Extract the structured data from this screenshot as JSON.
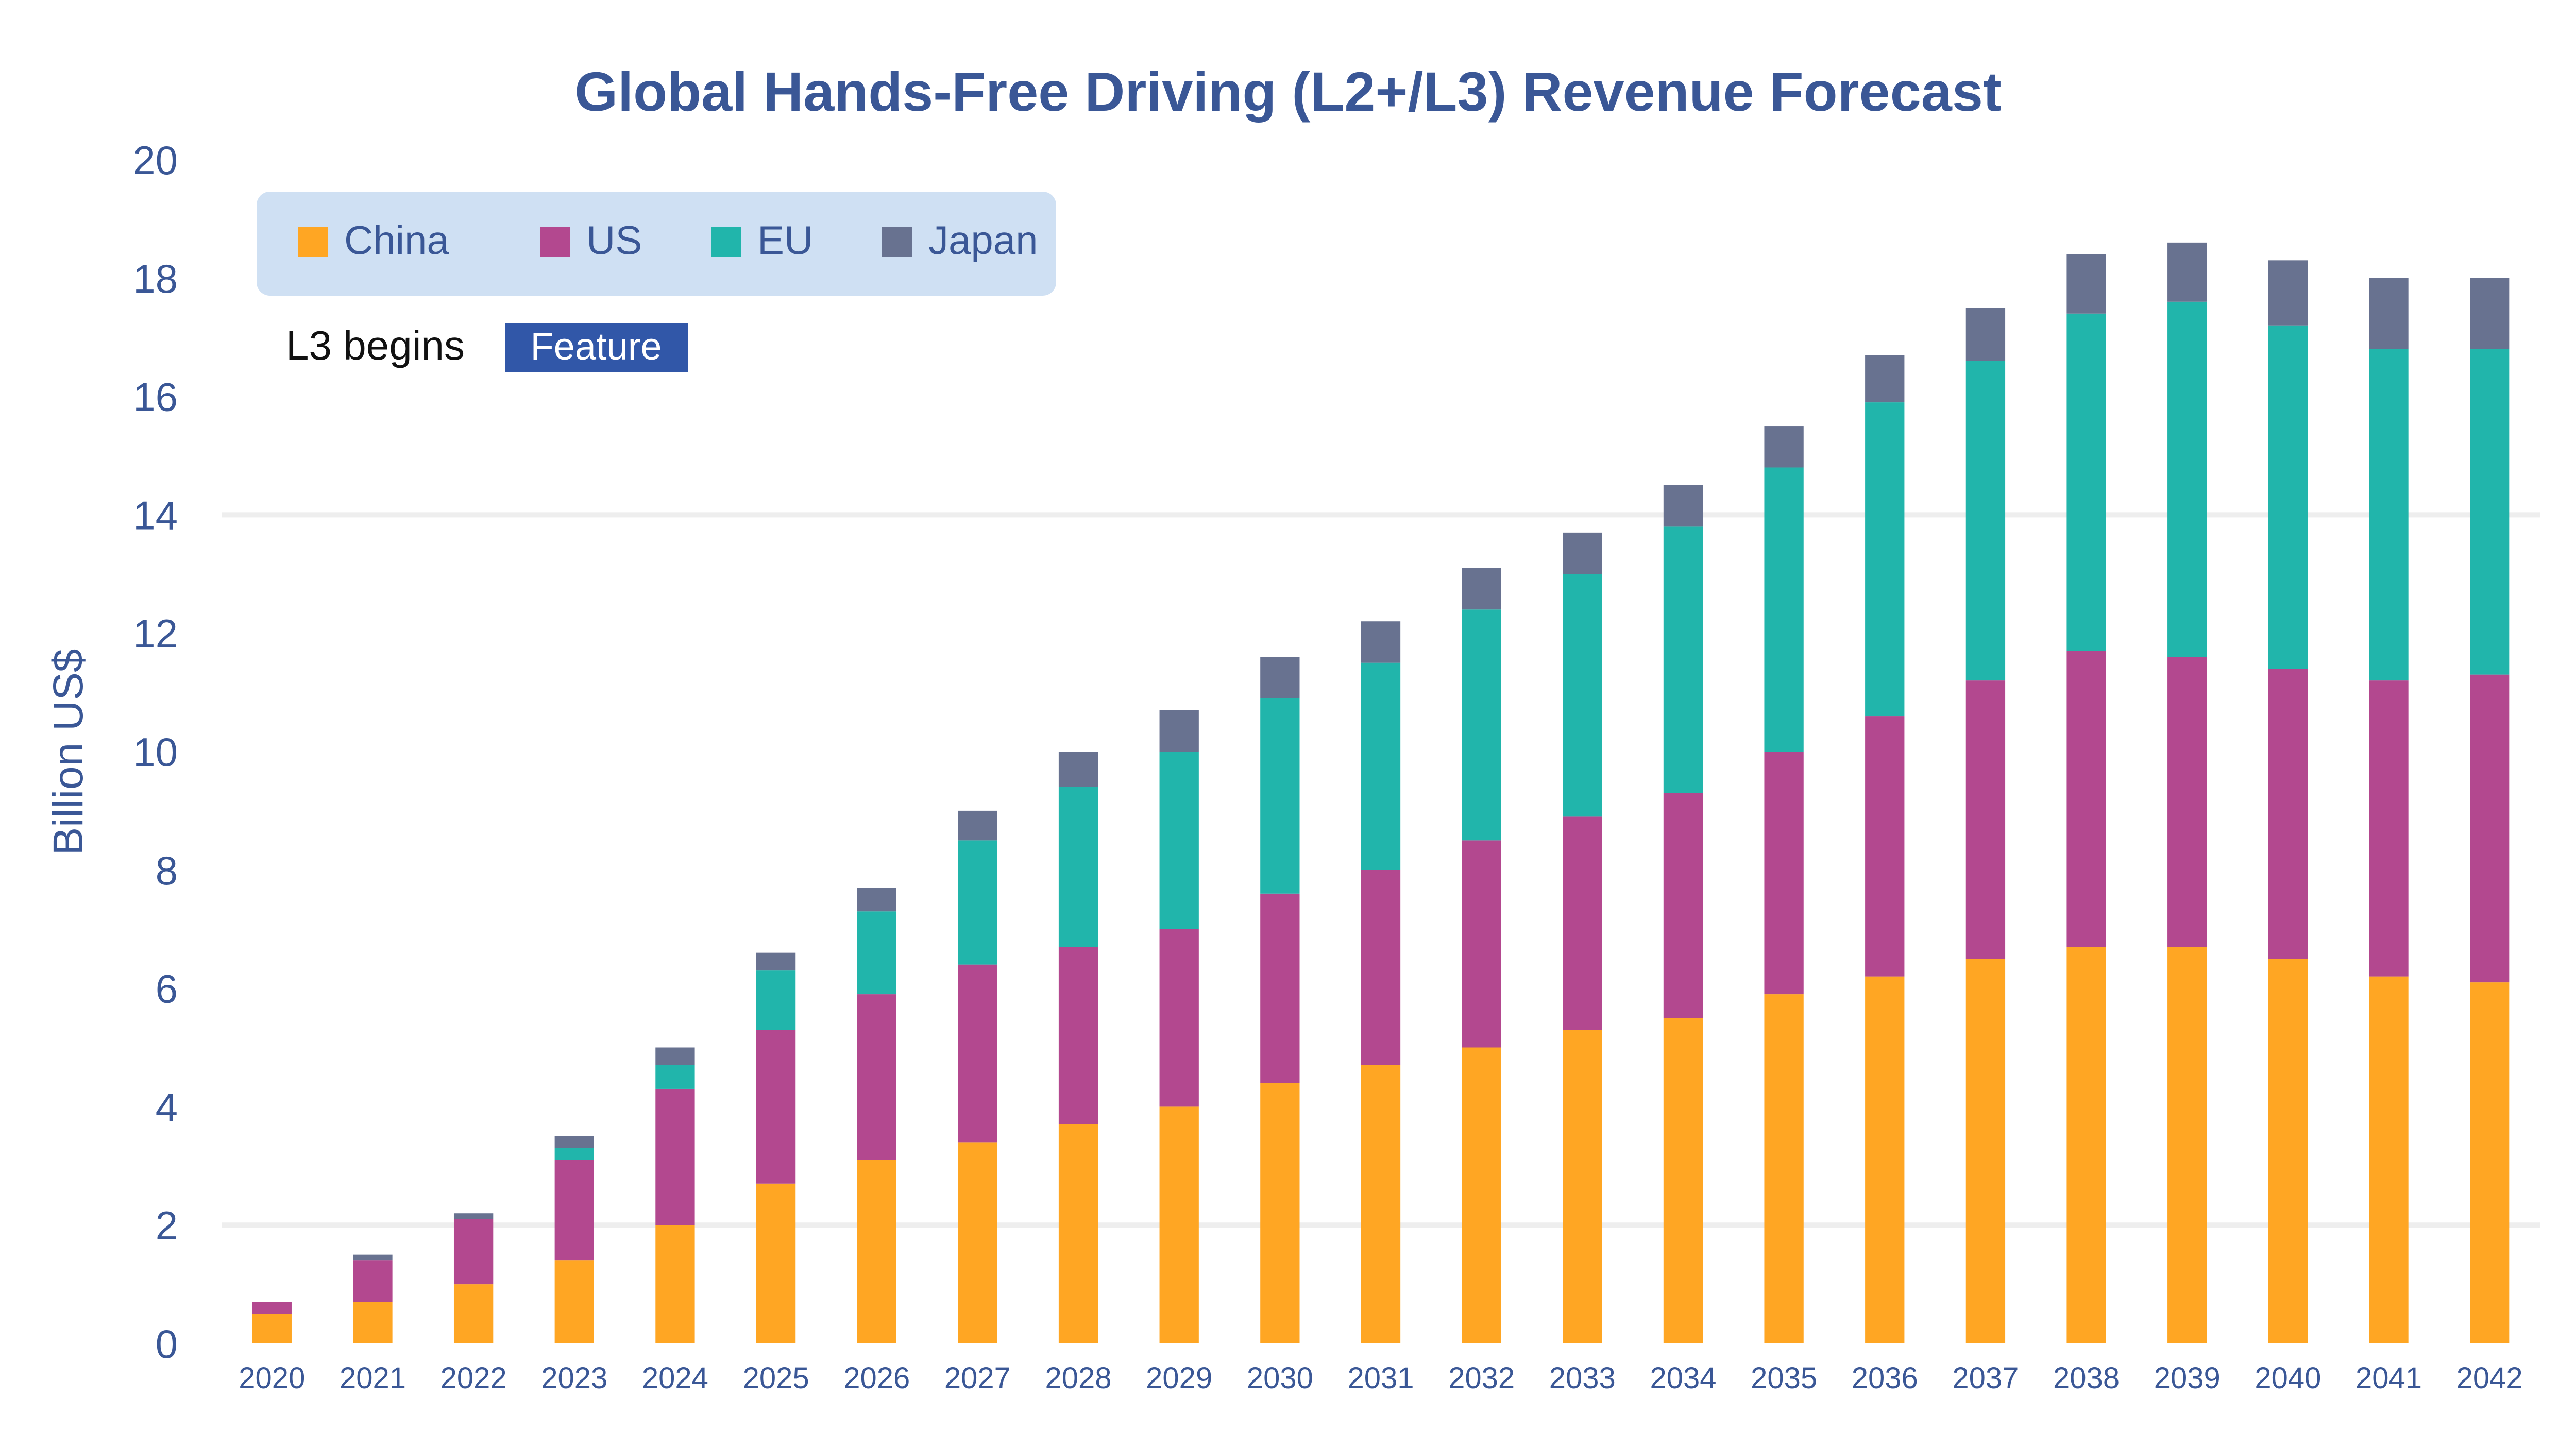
{
  "chart_data": {
    "type": "bar",
    "stacked": true,
    "title": "Global Hands-Free Driving (L2+/L3) Revenue Forecast",
    "xlabel": "",
    "ylabel": "Billion US$",
    "ylim": [
      0,
      20
    ],
    "yticks": [
      0,
      2,
      4,
      6,
      8,
      10,
      12,
      14,
      16,
      18,
      20
    ],
    "grid": "horizontal",
    "legend_position": "top-left",
    "categories": [
      "2020",
      "2021",
      "2022",
      "2023",
      "2024",
      "2025",
      "2026",
      "2027",
      "2028",
      "2029",
      "2030",
      "2031",
      "2032",
      "2033",
      "2034",
      "2035",
      "2036",
      "2037",
      "2038",
      "2039",
      "2040",
      "2041",
      "2042"
    ],
    "series": [
      {
        "name": "China",
        "color": "#ffa623",
        "values": [
          0.5,
          0.7,
          1.0,
          1.4,
          2.0,
          2.7,
          3.1,
          3.4,
          3.7,
          4.0,
          4.4,
          4.7,
          5.0,
          5.3,
          5.5,
          5.9,
          6.2,
          6.5,
          6.7,
          6.7,
          6.5,
          6.2,
          6.1
        ]
      },
      {
        "name": "US",
        "color": "#b3488f",
        "values": [
          0.2,
          0.7,
          1.1,
          1.7,
          2.3,
          2.6,
          2.8,
          3.0,
          3.0,
          3.0,
          3.2,
          3.3,
          3.5,
          3.6,
          3.8,
          4.1,
          4.4,
          4.7,
          5.0,
          4.9,
          4.9,
          5.0,
          5.2
        ]
      },
      {
        "name": "EU",
        "color": "#21b5ab",
        "values": [
          0.0,
          0.0,
          0.0,
          0.2,
          0.4,
          1.0,
          1.4,
          2.1,
          2.7,
          3.0,
          3.3,
          3.5,
          3.9,
          4.1,
          4.5,
          4.8,
          5.3,
          5.4,
          5.7,
          6.0,
          5.8,
          5.6,
          5.5
        ]
      },
      {
        "name": "Japan",
        "color": "#687290",
        "values": [
          0.0,
          0.1,
          0.1,
          0.2,
          0.3,
          0.3,
          0.4,
          0.5,
          0.6,
          0.7,
          0.7,
          0.7,
          0.7,
          0.7,
          0.7,
          0.7,
          0.8,
          0.9,
          1.0,
          1.0,
          1.1,
          1.2,
          1.2
        ]
      }
    ],
    "annotations": {
      "footnote_prefix": "L3 begins",
      "badge_label": "Feature"
    }
  }
}
